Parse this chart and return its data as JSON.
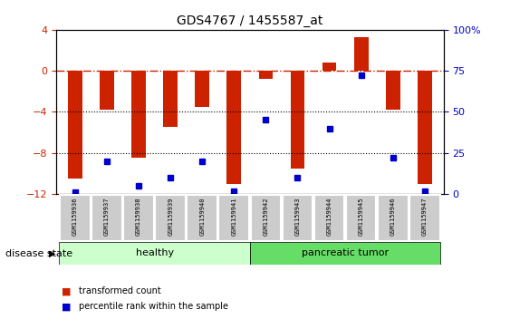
{
  "title": "GDS4767 / 1455587_at",
  "samples": [
    "GSM1159936",
    "GSM1159937",
    "GSM1159938",
    "GSM1159939",
    "GSM1159940",
    "GSM1159941",
    "GSM1159942",
    "GSM1159943",
    "GSM1159944",
    "GSM1159945",
    "GSM1159946",
    "GSM1159947"
  ],
  "bar_values": [
    -10.5,
    -3.8,
    -8.5,
    -5.5,
    -3.5,
    -11.0,
    -0.8,
    -9.5,
    0.8,
    3.3,
    -3.8,
    -11.0
  ],
  "dot_values": [
    1,
    20,
    5,
    10,
    20,
    2,
    45,
    10,
    40,
    72,
    22,
    2
  ],
  "bar_color": "#cc2200",
  "dot_color": "#0000cc",
  "ylim_left": [
    -12,
    4
  ],
  "ylim_right": [
    0,
    100
  ],
  "dotted_lines": [
    -4,
    -8
  ],
  "healthy_count": 6,
  "tumor_count": 6,
  "healthy_color": "#ccffcc",
  "tumor_color": "#66dd66",
  "label_bg_color": "#cccccc",
  "legend_bar_label": "transformed count",
  "legend_dot_label": "percentile rank within the sample",
  "disease_state_label": "disease state",
  "healthy_label": "healthy",
  "tumor_label": "pancreatic tumor",
  "left_yticks": [
    -12,
    -8,
    -4,
    0,
    4
  ],
  "right_yticks": [
    0,
    25,
    50,
    75,
    100
  ],
  "right_yticklabels": [
    "0",
    "25",
    "50",
    "75",
    "100%"
  ]
}
